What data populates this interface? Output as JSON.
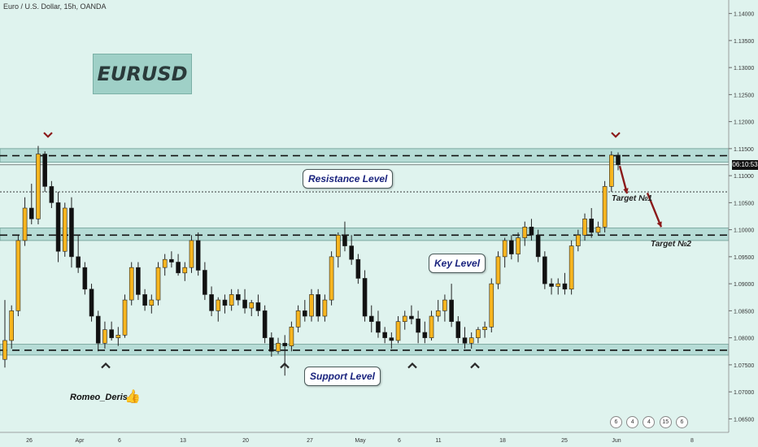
{
  "header": {
    "symbol_text": "Euro / U.S. Dollar, 15h, OANDA"
  },
  "title_box": {
    "label": "EURUSD"
  },
  "annotations": {
    "resistance": "Resistance Level",
    "key": "Key Level",
    "support": "Support Level",
    "target1": "Target №1",
    "target2": "Target №2",
    "author": "Romeo_Deris"
  },
  "price_badge": "06:10:53",
  "footer_badges": [
    "6",
    "4",
    "4",
    "15",
    "6"
  ],
  "colors": {
    "background": "#dff3ee",
    "up": "#f7b51f",
    "down": "#111111",
    "zone": "#b6dcd6",
    "arrow": "#8b1a1a"
  },
  "chart_data": {
    "type": "candlestick",
    "yticks": [
      "1.14000",
      "1.13500",
      "1.13000",
      "1.12500",
      "1.12000",
      "1.11500",
      "1.11000",
      "1.10500",
      "1.10000",
      "1.09500",
      "1.09000",
      "1.08500",
      "1.08000",
      "1.07500",
      "1.07000",
      "1.06500"
    ],
    "ylim": [
      1.0625,
      1.1425
    ],
    "xticks": [
      "26",
      "Apr",
      "6",
      "13",
      "20",
      "27",
      "May",
      "6",
      "11",
      "18",
      "25",
      "Jun",
      "8"
    ],
    "zones": [
      {
        "name": "resistance",
        "low": 1.1125,
        "high": 1.115,
        "line": 1.1137
      },
      {
        "name": "key",
        "low": 1.098,
        "high": 1.1003,
        "line": 1.099
      },
      {
        "name": "support",
        "low": 1.0768,
        "high": 1.0788,
        "line": 1.0777
      }
    ],
    "current_price_line": 1.107,
    "candles": [
      [
        1.076,
        1.087,
        1.0745,
        1.0795
      ],
      [
        1.0795,
        1.086,
        1.078,
        1.085
      ],
      [
        1.085,
        1.099,
        1.084,
        1.098
      ],
      [
        1.098,
        1.106,
        1.097,
        1.104
      ],
      [
        1.104,
        1.1085,
        1.101,
        1.102
      ],
      [
        1.102,
        1.1155,
        1.101,
        1.114
      ],
      [
        1.114,
        1.1145,
        1.107,
        1.108
      ],
      [
        1.108,
        1.109,
        1.104,
        1.105
      ],
      [
        1.105,
        1.107,
        1.094,
        1.096
      ],
      [
        1.096,
        1.105,
        1.095,
        1.104
      ],
      [
        1.104,
        1.106,
        1.093,
        1.095
      ],
      [
        1.095,
        1.099,
        1.092,
        1.093
      ],
      [
        1.093,
        1.094,
        1.088,
        1.089
      ],
      [
        1.089,
        1.09,
        1.083,
        1.084
      ],
      [
        1.084,
        1.085,
        1.0775,
        1.079
      ],
      [
        1.079,
        1.083,
        1.078,
        1.0815
      ],
      [
        1.0815,
        1.083,
        1.0795,
        1.08
      ],
      [
        1.08,
        1.082,
        1.0785,
        1.0805
      ],
      [
        1.0805,
        1.088,
        1.08,
        1.087
      ],
      [
        1.087,
        1.094,
        1.086,
        1.093
      ],
      [
        1.093,
        1.094,
        1.087,
        1.088
      ],
      [
        1.088,
        1.089,
        1.085,
        1.086
      ],
      [
        1.086,
        1.088,
        1.0845,
        1.087
      ],
      [
        1.087,
        1.094,
        1.086,
        1.093
      ],
      [
        1.093,
        1.0955,
        1.0915,
        1.0945
      ],
      [
        1.0945,
        1.096,
        1.093,
        1.094
      ],
      [
        1.094,
        1.0955,
        1.0915,
        1.092
      ],
      [
        1.092,
        1.094,
        1.0905,
        1.093
      ],
      [
        1.093,
        1.099,
        1.092,
        1.098
      ],
      [
        1.098,
        1.0995,
        1.0915,
        1.0925
      ],
      [
        1.0925,
        1.094,
        1.087,
        1.088
      ],
      [
        1.088,
        1.0895,
        1.084,
        1.085
      ],
      [
        1.085,
        1.0875,
        1.083,
        1.087
      ],
      [
        1.087,
        1.088,
        1.0845,
        1.086
      ],
      [
        1.086,
        1.089,
        1.085,
        1.088
      ],
      [
        1.088,
        1.089,
        1.086,
        1.087
      ],
      [
        1.087,
        1.089,
        1.0845,
        1.0855
      ],
      [
        1.0855,
        1.087,
        1.084,
        1.0865
      ],
      [
        1.0865,
        1.088,
        1.084,
        1.085
      ],
      [
        1.085,
        1.086,
        1.079,
        1.08
      ],
      [
        1.08,
        1.081,
        1.0765,
        1.0775
      ],
      [
        1.0775,
        1.08,
        1.077,
        1.079
      ],
      [
        1.079,
        1.0805,
        1.073,
        1.0785
      ],
      [
        1.0785,
        1.083,
        1.0775,
        1.082
      ],
      [
        1.082,
        1.086,
        1.081,
        1.085
      ],
      [
        1.085,
        1.087,
        1.083,
        1.084
      ],
      [
        1.084,
        1.089,
        1.083,
        1.088
      ],
      [
        1.088,
        1.089,
        1.083,
        1.084
      ],
      [
        1.084,
        1.088,
        1.083,
        1.087
      ],
      [
        1.087,
        1.096,
        1.086,
        1.095
      ],
      [
        1.095,
        1.0995,
        1.093,
        1.099
      ],
      [
        1.099,
        1.1015,
        1.096,
        1.097
      ],
      [
        1.097,
        1.099,
        1.0935,
        1.0945
      ],
      [
        1.0945,
        1.0955,
        1.09,
        1.091
      ],
      [
        1.091,
        1.0925,
        1.083,
        1.084
      ],
      [
        1.084,
        1.086,
        1.081,
        1.083
      ],
      [
        1.083,
        1.085,
        1.08,
        1.081
      ],
      [
        1.081,
        1.082,
        1.079,
        1.08
      ],
      [
        1.08,
        1.081,
        1.078,
        1.0795
      ],
      [
        1.0795,
        1.084,
        1.079,
        1.083
      ],
      [
        1.083,
        1.085,
        1.0815,
        1.084
      ],
      [
        1.084,
        1.086,
        1.0825,
        1.0835
      ],
      [
        1.0835,
        1.085,
        1.079,
        1.081
      ],
      [
        1.081,
        1.083,
        1.079,
        1.08
      ],
      [
        1.08,
        1.085,
        1.0795,
        1.084
      ],
      [
        1.084,
        1.087,
        1.083,
        1.085
      ],
      [
        1.085,
        1.088,
        1.083,
        1.087
      ],
      [
        1.087,
        1.09,
        1.082,
        1.083
      ],
      [
        1.083,
        1.084,
        1.079,
        1.08
      ],
      [
        1.08,
        1.082,
        1.078,
        1.079
      ],
      [
        1.079,
        1.081,
        1.078,
        1.08
      ],
      [
        1.08,
        1.082,
        1.079,
        1.0815
      ],
      [
        1.0815,
        1.083,
        1.08,
        1.082
      ],
      [
        1.082,
        1.091,
        1.081,
        1.09
      ],
      [
        1.09,
        1.096,
        1.089,
        1.095
      ],
      [
        1.095,
        1.0985,
        1.093,
        1.098
      ],
      [
        1.098,
        1.099,
        1.0945,
        1.0955
      ],
      [
        1.0955,
        1.0995,
        1.094,
        1.0985
      ],
      [
        1.0985,
        1.1015,
        1.097,
        1.1005
      ],
      [
        1.1005,
        1.102,
        1.098,
        1.099
      ],
      [
        1.099,
        1.1,
        1.094,
        1.095
      ],
      [
        1.095,
        1.096,
        1.089,
        1.09
      ],
      [
        1.09,
        1.091,
        1.088,
        1.0895
      ],
      [
        1.0895,
        1.091,
        1.088,
        1.09
      ],
      [
        1.09,
        1.092,
        1.088,
        1.089
      ],
      [
        1.089,
        1.098,
        1.088,
        1.097
      ],
      [
        1.097,
        1.1,
        1.096,
        1.099
      ],
      [
        1.099,
        1.103,
        1.098,
        1.102
      ],
      [
        1.102,
        1.104,
        1.0985,
        1.0995
      ],
      [
        1.0995,
        1.1015,
        1.099,
        1.1005
      ],
      [
        1.1005,
        1.109,
        1.0995,
        1.108
      ],
      [
        1.108,
        1.1145,
        1.107,
        1.1138
      ],
      [
        1.1138,
        1.1143,
        1.111,
        1.112
      ]
    ]
  }
}
